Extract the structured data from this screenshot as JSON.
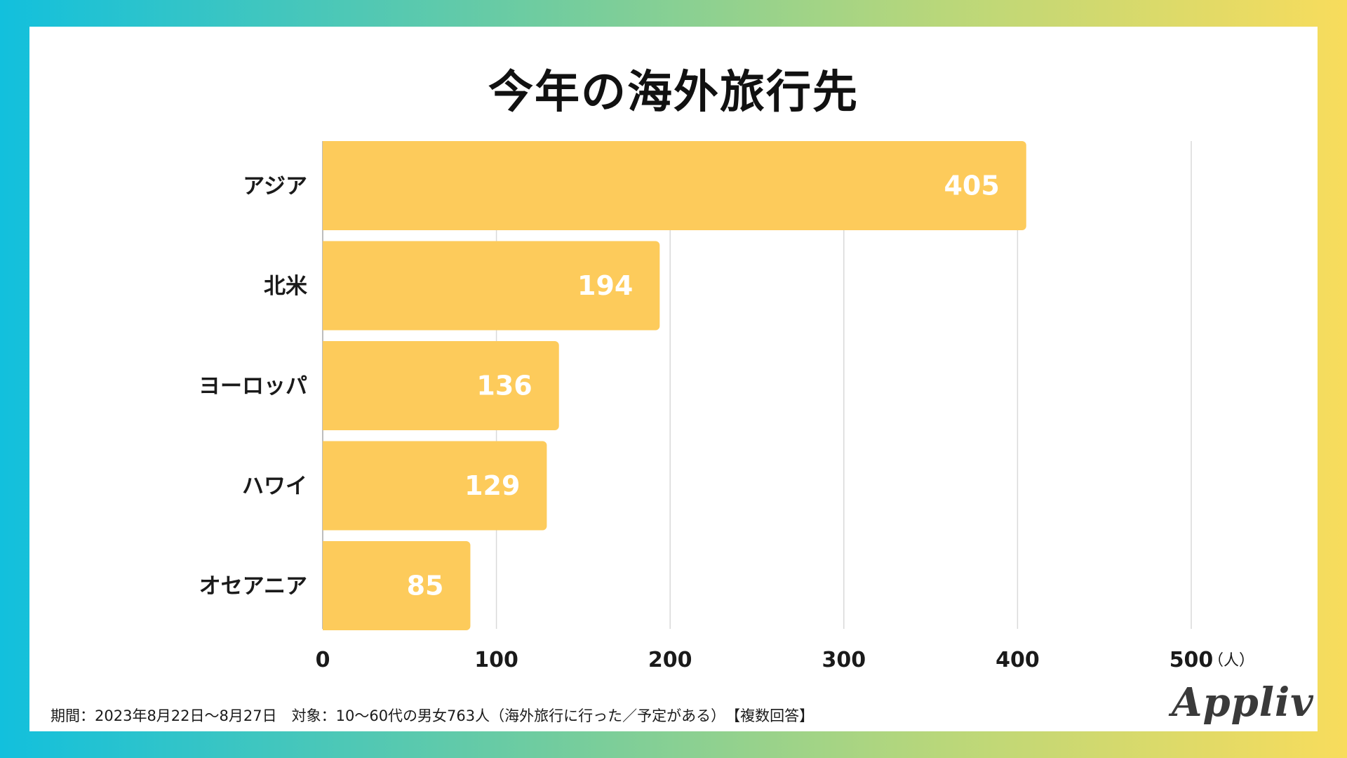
{
  "chart_data": {
    "type": "bar",
    "orientation": "horizontal",
    "title": "今年の海外旅行先",
    "categories": [
      "アジア",
      "北米",
      "ヨーロッパ",
      "ハワイ",
      "オセアニア"
    ],
    "values": [
      405,
      194,
      136,
      129,
      85
    ],
    "xlim": [
      0,
      500
    ],
    "xticks": [
      0,
      100,
      200,
      300,
      400,
      500
    ],
    "unit": "（人）",
    "grid": true,
    "bar_color": "#fdcb5b"
  },
  "footnote": "期間：2023年8月22日～8月27日　対象：10～60代の男女763人（海外旅行に行った／予定がある）　【複数回答】",
  "logo": "Appliv"
}
